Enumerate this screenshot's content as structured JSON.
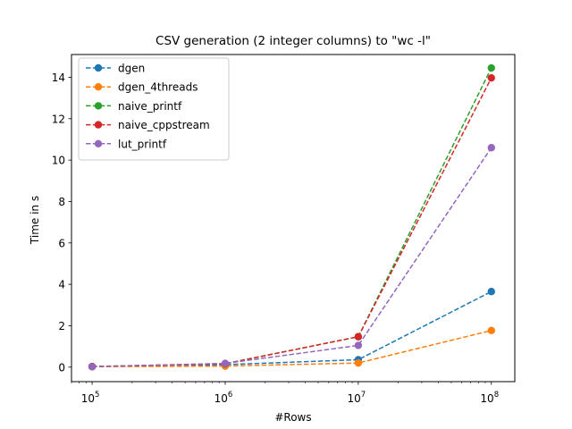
{
  "chart_data": {
    "type": "line",
    "title": "CSV generation (2 integer columns) to \"wc -l\"",
    "xlabel": "#Rows",
    "ylabel": "Time in s",
    "xscale": "log",
    "x": [
      100000,
      1000000,
      10000000,
      100000000
    ],
    "xlim": [
      70000,
      150000000
    ],
    "ylim": [
      -0.7,
      15.1
    ],
    "xticks": [
      {
        "value": 100000,
        "base": "10",
        "exp": "5"
      },
      {
        "value": 1000000,
        "base": "10",
        "exp": "6"
      },
      {
        "value": 10000000,
        "base": "10",
        "exp": "7"
      },
      {
        "value": 100000000,
        "base": "10",
        "exp": "8"
      }
    ],
    "yticks": [
      {
        "value": 0,
        "label": "0"
      },
      {
        "value": 2,
        "label": "2"
      },
      {
        "value": 4,
        "label": "4"
      },
      {
        "value": 6,
        "label": "6"
      },
      {
        "value": 8,
        "label": "8"
      },
      {
        "value": 10,
        "label": "10"
      },
      {
        "value": 12,
        "label": "12"
      },
      {
        "value": 14,
        "label": "14"
      }
    ],
    "grid": false,
    "legend_position": "top-left",
    "series": [
      {
        "name": "dgen",
        "color": "#1f77b4",
        "values": [
          0.02,
          0.12,
          0.36,
          3.65
        ]
      },
      {
        "name": "dgen_4threads",
        "color": "#ff7f0e",
        "values": [
          0.02,
          0.05,
          0.2,
          1.77
        ]
      },
      {
        "name": "naive_printf",
        "color": "#2ca02c",
        "values": [
          0.03,
          0.17,
          1.47,
          14.45
        ]
      },
      {
        "name": "naive_cppstream",
        "color": "#d62728",
        "values": [
          0.03,
          0.16,
          1.47,
          13.97
        ]
      },
      {
        "name": "lut_printf",
        "color": "#9467bd",
        "values": [
          0.02,
          0.18,
          1.05,
          10.6
        ]
      }
    ]
  }
}
